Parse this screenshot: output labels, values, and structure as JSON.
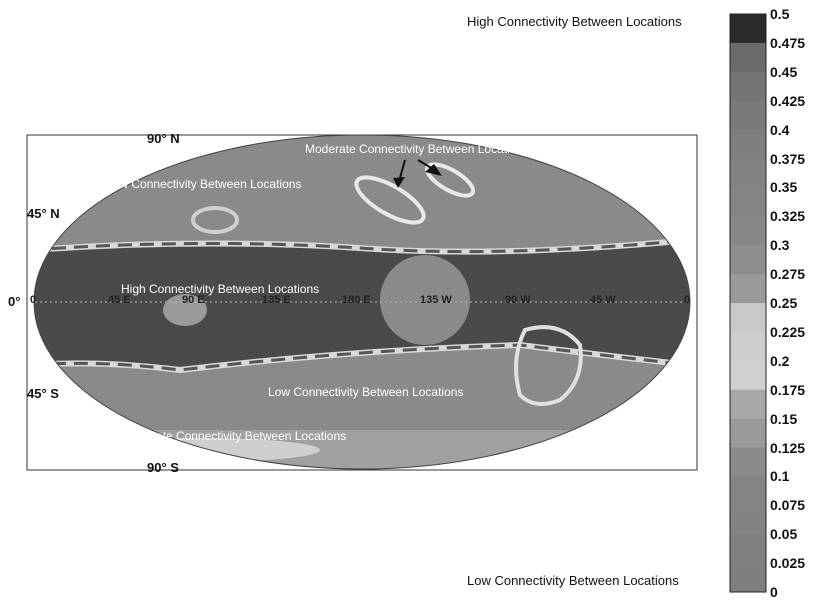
{
  "legend": {
    "top_label": "High Connectivity Between Locations",
    "bottom_label": "Low Connectivity Between Locations",
    "ticks": [
      "0.5",
      "0.475",
      "0.45",
      "0.425",
      "0.4",
      "0.375",
      "0.35",
      "0.325",
      "0.3",
      "0.275",
      "0.25",
      "0.225",
      "0.2",
      "0.175",
      "0.15",
      "0.125",
      "0.1",
      "0.075",
      "0.05",
      "0.025",
      "0"
    ],
    "band_colors": [
      "#2a2a2a",
      "#6a6a6a",
      "#757575",
      "#7a7a7a",
      "#7e7e7e",
      "#828282",
      "#858585",
      "#888888",
      "#8e8e8e",
      "#9a9a9a",
      "#c8c8c8",
      "#cecece",
      "#d0d0d0",
      "#a8a8a8",
      "#9a9a9a",
      "#8a8a8a",
      "#848484",
      "#838383",
      "#808080",
      "#7e7e7e"
    ]
  },
  "map": {
    "latitudes": {
      "n90": "90° N",
      "n45": "45° N",
      "eq": "0°",
      "s45": "45° S",
      "s90": "90° S"
    },
    "longitudes": [
      "0",
      "45 E",
      "90 E",
      "135 E",
      "180 E",
      "135 W",
      "90 W",
      "45 W",
      "0"
    ],
    "annotations": {
      "moderate_north": "Moderate Connectivity Between Locations",
      "low_north": "Low Connectivity Between Locations",
      "high_tropics": "High Connectivity Between Locations",
      "low_south": "Low Connectivity Between Locations",
      "moderate_south": "Moderate Connectivity Between Locations"
    }
  }
}
